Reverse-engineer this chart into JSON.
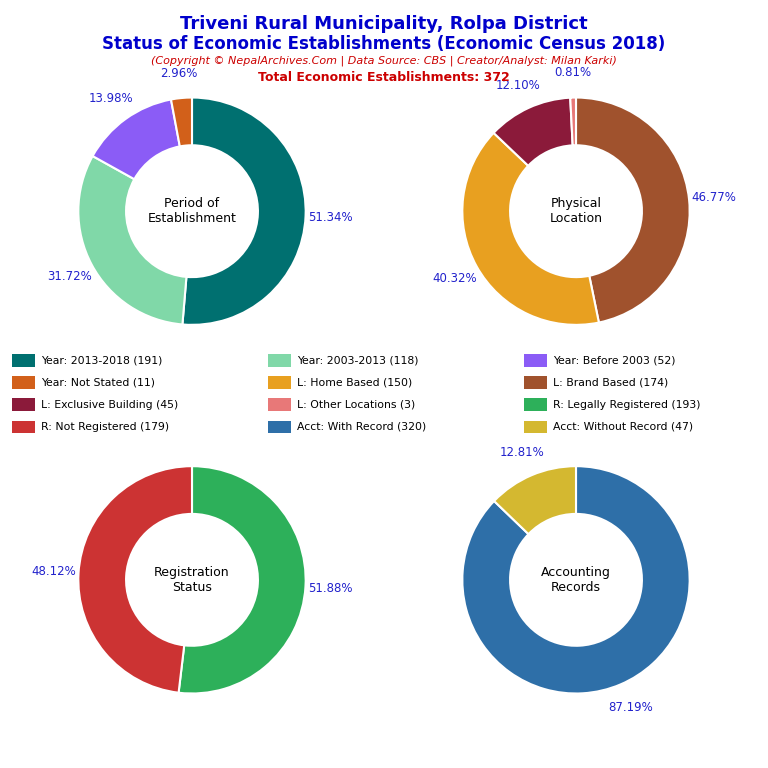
{
  "title_line1": "Triveni Rural Municipality, Rolpa District",
  "title_line2": "Status of Economic Establishments (Economic Census 2018)",
  "subtitle": "(Copyright © NepalArchives.Com | Data Source: CBS | Creator/Analyst: Milan Karki)",
  "total_line": "Total Economic Establishments: 372",
  "title_color": "#0000CC",
  "subtitle_color": "#CC0000",
  "pie1_label": "Period of\nEstablishment",
  "pie1_values": [
    191,
    118,
    52,
    11
  ],
  "pie1_pcts": [
    "51.34%",
    "31.72%",
    "13.98%",
    "2.96%"
  ],
  "pie1_colors": [
    "#007070",
    "#80D8A8",
    "#8B5CF6",
    "#D2601A"
  ],
  "pie1_startangle": 90,
  "pie2_label": "Physical\nLocation",
  "pie2_values": [
    174,
    150,
    45,
    3
  ],
  "pie2_pcts": [
    "46.77%",
    "40.32%",
    "12.10%",
    "0.81%"
  ],
  "pie2_colors": [
    "#A0522D",
    "#E8A020",
    "#8B1A3A",
    "#E87878"
  ],
  "pie2_startangle": 90,
  "pie3_label": "Registration\nStatus",
  "pie3_values": [
    193,
    179
  ],
  "pie3_pcts": [
    "51.88%",
    "48.12%"
  ],
  "pie3_colors": [
    "#2DB05A",
    "#CC3333"
  ],
  "pie3_startangle": 90,
  "pie4_label": "Accounting\nRecords",
  "pie4_values": [
    320,
    47
  ],
  "pie4_pcts": [
    "87.19%",
    "12.81%"
  ],
  "pie4_colors": [
    "#2E6FA8",
    "#D4B830"
  ],
  "pie4_startangle": 90,
  "legend_items": [
    {
      "label": "Year: 2013-2018 (191)",
      "color": "#007070"
    },
    {
      "label": "Year: 2003-2013 (118)",
      "color": "#80D8A8"
    },
    {
      "label": "Year: Before 2003 (52)",
      "color": "#8B5CF6"
    },
    {
      "label": "Year: Not Stated (11)",
      "color": "#D2601A"
    },
    {
      "label": "L: Home Based (150)",
      "color": "#E8A020"
    },
    {
      "label": "L: Brand Based (174)",
      "color": "#A0522D"
    },
    {
      "label": "L: Exclusive Building (45)",
      "color": "#8B1A3A"
    },
    {
      "label": "L: Other Locations (3)",
      "color": "#E87878"
    },
    {
      "label": "R: Legally Registered (193)",
      "color": "#2DB05A"
    },
    {
      "label": "R: Not Registered (179)",
      "color": "#CC3333"
    },
    {
      "label": "Acct: With Record (320)",
      "color": "#2E6FA8"
    },
    {
      "label": "Acct: Without Record (47)",
      "color": "#D4B830"
    }
  ],
  "pct_color": "#2222CC",
  "label_color": "#000000",
  "bg_color": "#FFFFFF"
}
